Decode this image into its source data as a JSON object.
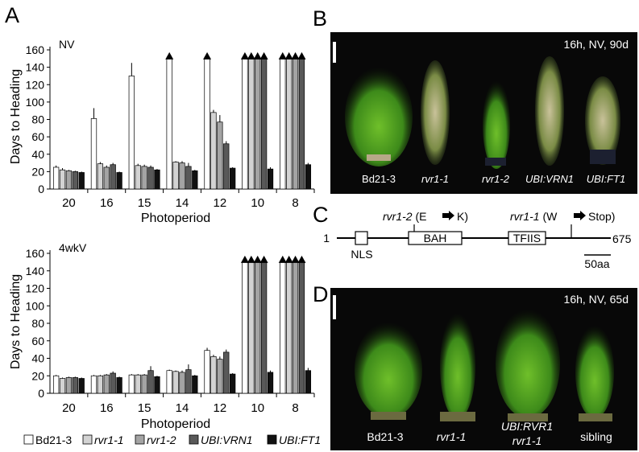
{
  "panels": {
    "a": "A",
    "b": "B",
    "c": "C",
    "d": "D"
  },
  "chart_data": [
    {
      "type": "bar",
      "condition_label": "NV",
      "categories": [
        "20",
        "16",
        "15",
        "14",
        "12",
        "10",
        "8"
      ],
      "xlabel": "Photoperiod",
      "ylabel": "Days to Heading",
      "ylim": [
        0,
        160
      ],
      "yticks": [
        "0",
        "20",
        "40",
        "60",
        "80",
        "100",
        "120",
        "140",
        "160"
      ],
      "series": [
        {
          "name": "Bd21-3",
          "color": "#ffffff",
          "values": [
            25,
            81,
            130,
            150,
            150,
            150,
            150
          ],
          "errors": [
            2,
            12,
            15,
            0,
            0,
            0,
            0
          ],
          "capped": [
            false,
            false,
            false,
            true,
            true,
            true,
            true
          ]
        },
        {
          "name": "rvr1-1",
          "color": "#d3d3d3",
          "values": [
            22,
            29,
            27,
            31,
            88,
            150,
            150
          ],
          "errors": [
            2,
            2,
            2,
            1,
            3,
            0,
            0
          ],
          "capped": [
            false,
            false,
            false,
            false,
            false,
            true,
            true
          ]
        },
        {
          "name": "rvr1-2",
          "color": "#a4a4a4",
          "values": [
            21,
            25,
            26,
            30,
            77,
            150,
            150
          ],
          "errors": [
            1,
            2,
            2,
            2,
            8,
            0,
            0
          ],
          "capped": [
            false,
            false,
            false,
            false,
            false,
            true,
            true
          ]
        },
        {
          "name": "UBI:VRN1",
          "color": "#595959",
          "values": [
            20,
            28,
            25,
            26,
            52,
            150,
            150
          ],
          "errors": [
            1,
            2,
            2,
            4,
            3,
            0,
            0
          ],
          "capped": [
            false,
            false,
            false,
            false,
            false,
            true,
            true
          ]
        },
        {
          "name": "UBI:FT1",
          "color": "#111111",
          "values": [
            19,
            19,
            22,
            21,
            24,
            23,
            28
          ],
          "errors": [
            1,
            1,
            1,
            1,
            1,
            2,
            2
          ],
          "capped": [
            false,
            false,
            false,
            false,
            false,
            false,
            false
          ]
        }
      ]
    },
    {
      "type": "bar",
      "condition_label": "4wkV",
      "categories": [
        "20",
        "16",
        "15",
        "14",
        "12",
        "10",
        "8"
      ],
      "xlabel": "Photoperiod",
      "ylabel": "Days to Heading",
      "ylim": [
        0,
        160
      ],
      "yticks": [
        "0",
        "20",
        "40",
        "60",
        "80",
        "100",
        "120",
        "140",
        "160"
      ],
      "series": [
        {
          "name": "Bd21-3",
          "color": "#ffffff",
          "values": [
            20,
            20,
            21,
            26,
            49,
            150,
            150
          ],
          "errors": [
            1,
            1,
            1,
            1,
            3,
            0,
            0
          ],
          "capped": [
            false,
            false,
            false,
            false,
            false,
            true,
            true
          ]
        },
        {
          "name": "rvr1-1",
          "color": "#d3d3d3",
          "values": [
            17,
            20,
            21,
            25,
            42,
            150,
            150
          ],
          "errors": [
            1,
            1,
            1,
            1,
            2,
            0,
            0
          ],
          "capped": [
            false,
            false,
            false,
            false,
            false,
            true,
            true
          ]
        },
        {
          "name": "rvr1-2",
          "color": "#a4a4a4",
          "values": [
            18,
            21,
            21,
            24,
            39,
            150,
            150
          ],
          "errors": [
            1,
            1,
            1,
            2,
            3,
            0,
            0
          ],
          "capped": [
            false,
            false,
            false,
            false,
            false,
            true,
            true
          ]
        },
        {
          "name": "UBI:VRN1",
          "color": "#595959",
          "values": [
            18,
            23,
            26,
            27,
            47,
            150,
            150
          ],
          "errors": [
            1,
            2,
            5,
            6,
            3,
            0,
            0
          ],
          "capped": [
            false,
            false,
            false,
            false,
            false,
            true,
            true
          ]
        },
        {
          "name": "UBI:FT1",
          "color": "#111111",
          "values": [
            17,
            18,
            19,
            20,
            22,
            24,
            26
          ],
          "errors": [
            1,
            1,
            1,
            1,
            1,
            2,
            3
          ],
          "capped": [
            false,
            false,
            false,
            false,
            false,
            false,
            false
          ]
        }
      ]
    }
  ],
  "legend": [
    {
      "name": "Bd21-3",
      "color": "#ffffff",
      "italic": false
    },
    {
      "name": "rvr1-1",
      "color": "#d3d3d3",
      "italic": true
    },
    {
      "name": "rvr1-2",
      "color": "#a4a4a4",
      "italic": true
    },
    {
      "name": "UBI:VRN1",
      "color": "#595959",
      "italic": true
    },
    {
      "name": "UBI:FT1",
      "color": "#111111",
      "italic": true
    }
  ],
  "photo_b": {
    "caption": "16h, NV, 90d",
    "labels": [
      "Bd21-3",
      "rvr1-1",
      "rvr1-2",
      "UBI:VRN1",
      "UBI:FT1"
    ]
  },
  "gene_diagram": {
    "start": "1",
    "end": "675",
    "domains": [
      "NLS",
      "BAH",
      "TFIIS"
    ],
    "mutation_2_allele": "rvr1-2",
    "mutation_2_change_from": "(E",
    "mutation_2_change_to": "K)",
    "mutation_1_allele": "rvr1-1",
    "mutation_1_change_from": "(W",
    "mutation_1_change_to": "Stop)",
    "scale": "50aa"
  },
  "photo_d": {
    "caption": "16h, NV, 65d",
    "labels": [
      "Bd21-3",
      "rvr1-1",
      "UBI:RVR1",
      "rvr1-1",
      "sibling"
    ]
  }
}
